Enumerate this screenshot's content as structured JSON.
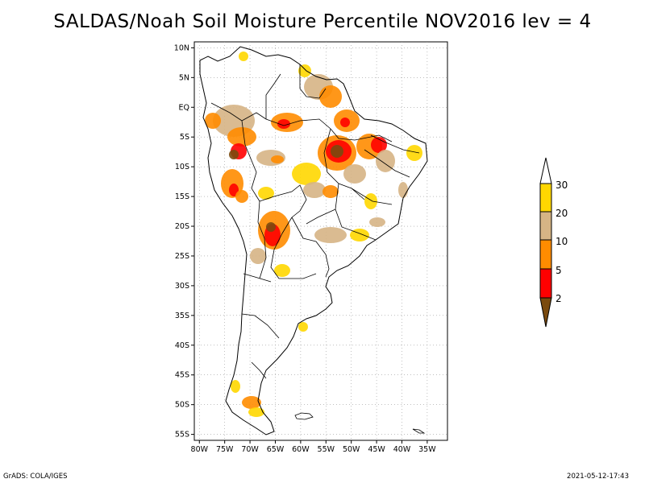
{
  "title": "SALDAS/Noah Soil Moisture Percentile NOV2016 lev = 4",
  "footer": {
    "left": "GrADS: COLA/IGES",
    "right": "2021-05-12-17:43"
  },
  "map": {
    "lon_range": [
      -81,
      -31
    ],
    "lat_range": [
      -56,
      11
    ],
    "lon_ticks": [
      "80W",
      "75W",
      "70W",
      "65W",
      "60W",
      "55W",
      "50W",
      "45W",
      "40W",
      "35W"
    ],
    "lat_ticks": [
      "10N",
      "5N",
      "EQ",
      "5S",
      "10S",
      "15S",
      "20S",
      "25S",
      "30S",
      "35S",
      "40S",
      "45S",
      "50S",
      "55S"
    ],
    "grid": "dotted"
  },
  "colorbar": {
    "labels": [
      "2",
      "5",
      "10",
      "20",
      "30"
    ],
    "colors": {
      "below_2": "#7a4a0e",
      "2_5": "#ff0000",
      "5_10": "#ff8c00",
      "10_20": "#d6b485",
      "20_30": "#ffd700",
      "above_30": "#ffffff"
    }
  }
}
